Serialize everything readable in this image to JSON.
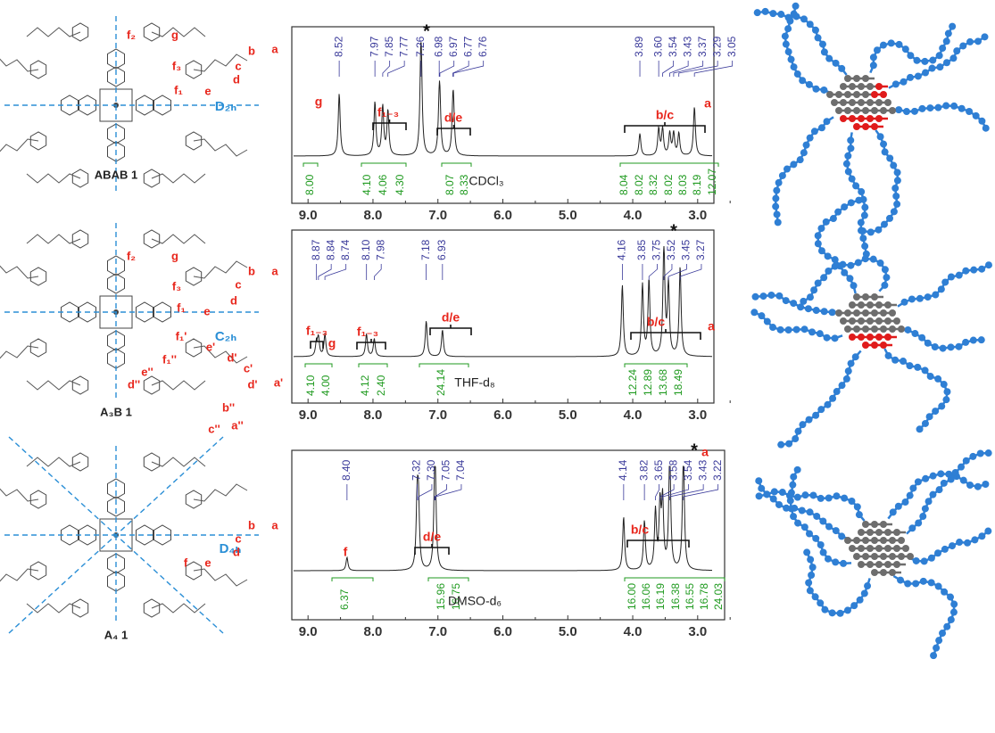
{
  "x_axis": {
    "xlim": [
      9.25,
      2.75
    ],
    "xticks": [
      {
        "value": 9,
        "label": "9.0"
      },
      {
        "value": 8,
        "label": "8.0"
      },
      {
        "value": 7,
        "label": "7.0"
      },
      {
        "value": 6,
        "label": "6.0"
      },
      {
        "value": 5,
        "label": "5.0"
      },
      {
        "value": 4,
        "label": "4.0"
      },
      {
        "value": 3,
        "label": "3.0"
      }
    ]
  },
  "panels": [
    {
      "structure": {
        "name": "ABAB 1",
        "symmetry": "D₂ₕ",
        "sites": [
          "f₂",
          "g",
          "f₃",
          "b",
          "a",
          "c",
          "d",
          "e",
          "f₁"
        ]
      },
      "spectrum": {
        "solvent": "CDCl₃",
        "solvent_mark": "*",
        "peaks": [
          "8.52",
          "7.97",
          "7.85",
          "7.77",
          "7.26",
          "6.98",
          "6.97",
          "6.77",
          "6.76",
          "3.89",
          "3.60",
          "3.54",
          "3.43",
          "3.37",
          "3.29",
          "3.05"
        ],
        "integrals": [
          "8.00",
          "4.10",
          "4.06",
          "4.30",
          "8.07",
          "8.33",
          "8.04",
          "8.02",
          "8.32",
          "8.02",
          "8.03",
          "8.19",
          "12.07"
        ],
        "assignments": [
          "g",
          "f₁₋₃",
          "d/e",
          "b/c",
          "a"
        ]
      }
    },
    {
      "structure": {
        "name": "A₃B 1",
        "symmetry": "C₂ₕ",
        "sites": [
          "f₂",
          "g",
          "f₃",
          "b",
          "a",
          "c",
          "d",
          "e",
          "f₁",
          "f₁'",
          "e'",
          "d'",
          "c'",
          "d'",
          "a'",
          "f₁''",
          "e''",
          "d''",
          "b''",
          "c''",
          "a''"
        ]
      },
      "spectrum": {
        "solvent": "THF-d₈",
        "solvent_mark": "*",
        "peaks": [
          "8.87",
          "8.84",
          "8.74",
          "8.10",
          "7.98",
          "7.18",
          "6.93",
          "4.16",
          "3.85",
          "3.75",
          "3.52",
          "3.45",
          "3.27"
        ],
        "integrals": [
          "4.10",
          "4.00",
          "4.12",
          "2.40",
          "24.14",
          "12.24",
          "12.89",
          "13.68",
          "18.49"
        ],
        "assignments": [
          "f₁₋₃",
          "g",
          "f₁₋₃",
          "d/e",
          "b/c",
          "a"
        ]
      }
    },
    {
      "structure": {
        "name": "A₄ 1",
        "symmetry": "D₄ₕ",
        "sites": [
          "b",
          "a",
          "c",
          "d",
          "e",
          "f"
        ]
      },
      "spectrum": {
        "solvent": "DMSO-d₆",
        "solvent_mark": "*",
        "peaks": [
          "8.40",
          "7.32",
          "7.30",
          "7.05",
          "7.04",
          "4.14",
          "3.82",
          "3.65",
          "3.58",
          "3.54",
          "3.43",
          "3.22"
        ],
        "integrals": [
          "6.37",
          "15.96",
          "16.75",
          "16.00",
          "16.06",
          "16.19",
          "16.38",
          "16.55",
          "16.78",
          "24.03"
        ],
        "assignments": [
          "f",
          "d/e",
          "b/c",
          "a"
        ]
      }
    }
  ]
}
